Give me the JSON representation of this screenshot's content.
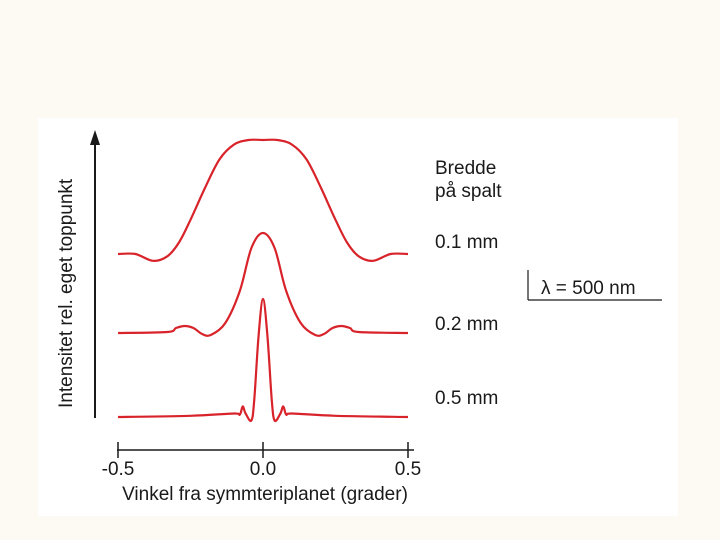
{
  "colors": {
    "page_background": "#fdfaf3",
    "panel_background": "#ffffff",
    "curve": "#d8232a",
    "axis": "#1a1a1a"
  },
  "chart_data": {
    "type": "line",
    "ylabel": "Intensitet rel. eget toppunkt",
    "xlabel": "Vinkel fra symmteriplanet (grader)",
    "x_ticks": [
      "-0.5",
      "0.0",
      "0.5"
    ],
    "xlim": [
      -0.5,
      0.5
    ],
    "legend_title": [
      "Bredde",
      "på spalt"
    ],
    "wavelength_label": "λ = 500 nm",
    "series": [
      {
        "name": "0.1 mm",
        "slit_width_mm": 0.1,
        "points": [
          [
            -0.5,
            0.0
          ],
          [
            -0.44,
            0.0
          ],
          [
            -0.38,
            -0.06
          ],
          [
            -0.33,
            -0.02
          ],
          [
            -0.29,
            0.1
          ],
          [
            -0.25,
            0.3
          ],
          [
            -0.2,
            0.58
          ],
          [
            -0.15,
            0.83
          ],
          [
            -0.1,
            0.96
          ],
          [
            -0.05,
            1.0
          ],
          [
            0.0,
            1.0
          ],
          [
            0.05,
            1.0
          ],
          [
            0.1,
            0.96
          ],
          [
            0.15,
            0.83
          ],
          [
            0.2,
            0.58
          ],
          [
            0.25,
            0.3
          ],
          [
            0.29,
            0.1
          ],
          [
            0.33,
            -0.02
          ],
          [
            0.38,
            -0.06
          ],
          [
            0.44,
            0.0
          ],
          [
            0.5,
            0.0
          ]
        ]
      },
      {
        "name": "0.2 mm",
        "slit_width_mm": 0.2,
        "points": [
          [
            -0.5,
            0.0
          ],
          [
            -0.33,
            0.01
          ],
          [
            -0.3,
            0.05
          ],
          [
            -0.27,
            0.07
          ],
          [
            -0.24,
            0.05
          ],
          [
            -0.21,
            -0.01
          ],
          [
            -0.18,
            -0.02
          ],
          [
            -0.13,
            0.1
          ],
          [
            -0.08,
            0.42
          ],
          [
            -0.04,
            0.85
          ],
          [
            0.0,
            1.0
          ],
          [
            0.04,
            0.85
          ],
          [
            0.08,
            0.42
          ],
          [
            0.13,
            0.1
          ],
          [
            0.18,
            -0.02
          ],
          [
            0.21,
            -0.01
          ],
          [
            0.24,
            0.05
          ],
          [
            0.27,
            0.07
          ],
          [
            0.3,
            0.05
          ],
          [
            0.33,
            0.01
          ],
          [
            0.5,
            0.0
          ]
        ]
      },
      {
        "name": "0.5 mm",
        "slit_width_mm": 0.5,
        "points": [
          [
            -0.5,
            0.0
          ],
          [
            -0.25,
            0.01
          ],
          [
            -0.1,
            0.03
          ],
          [
            -0.08,
            0.02
          ],
          [
            -0.07,
            0.09
          ],
          [
            -0.06,
            0.03
          ],
          [
            -0.04,
            -0.03
          ],
          [
            -0.03,
            0.15
          ],
          [
            -0.015,
            0.7
          ],
          [
            0.0,
            1.0
          ],
          [
            0.015,
            0.7
          ],
          [
            0.03,
            0.15
          ],
          [
            0.04,
            -0.03
          ],
          [
            0.06,
            0.03
          ],
          [
            0.07,
            0.09
          ],
          [
            0.08,
            0.02
          ],
          [
            0.1,
            0.03
          ],
          [
            0.25,
            0.01
          ],
          [
            0.5,
            0.0
          ]
        ]
      }
    ]
  }
}
